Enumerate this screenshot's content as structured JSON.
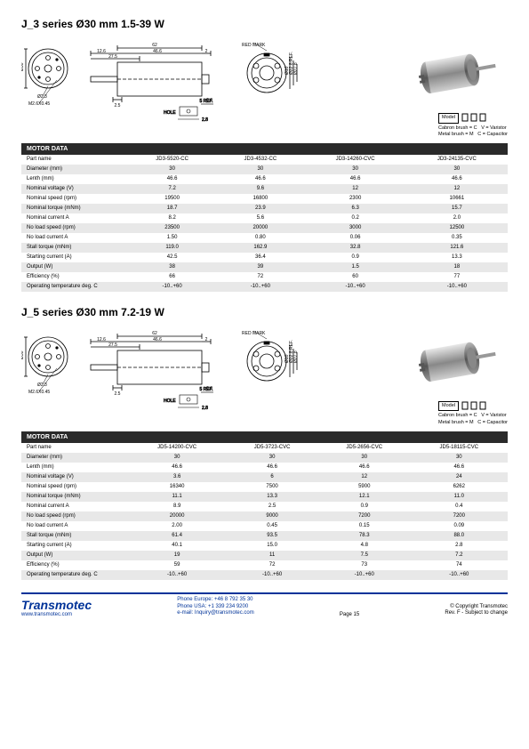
{
  "sections": [
    {
      "title": "J_3 series Ø30 mm 1.5-39 W",
      "diagram": {
        "overall_length": "62",
        "body_length": "46.6",
        "shaft_projection": "12.6",
        "shaft_flat": "27.5",
        "shaft_end_gap": "2",
        "shaft_step": "2.5",
        "diameter": "Ø30",
        "shaft_dia": "Ø2.3",
        "mount_thread": "M2.6X0.45",
        "red_mark": "RED MARK",
        "endcap_dia1": "Ø10",
        "endcap_dia2": "Ø22.8 REF.",
        "endcap_dia3": "Ø27.8",
        "term_ref": "5 REF.",
        "term_hole": "HOLE",
        "term_h": "2.8",
        "term_gap": "0.4"
      },
      "legend": {
        "model": "Model",
        "cb": "Cabron brush = C",
        "mb": "Metal brush = M",
        "v": "V = Varistor",
        "c": "C = Capacitor"
      },
      "table_header": "MOTOR DATA",
      "columns": [
        "JD3-5520-CC",
        "JD3-4532-CC",
        "JD3-14260-CVC",
        "JD3-24135-CVC"
      ],
      "rows": [
        {
          "label": "Part name",
          "v": [
            "JD3-5520-CC",
            "JD3-4532-CC",
            "JD3-14260-CVC",
            "JD3-24135-CVC"
          ]
        },
        {
          "label": "Diameter (mm)",
          "v": [
            "30",
            "30",
            "30",
            "30"
          ]
        },
        {
          "label": "Lenth (mm)",
          "v": [
            "46.6",
            "46.6",
            "46.6",
            "46.6"
          ]
        },
        {
          "label": "Nominal voltage (V)",
          "v": [
            "7.2",
            "9.6",
            "12",
            "12"
          ]
        },
        {
          "label": "Nominal speed (rpm)",
          "v": [
            "19500",
            "16800",
            "2300",
            "10661"
          ]
        },
        {
          "label": "Nominal torque (mNm)",
          "v": [
            "18.7",
            "23.9",
            "6.3",
            "15.7"
          ]
        },
        {
          "label": "Nominal current A",
          "v": [
            "8.2",
            "5.6",
            "0.2",
            "2.0"
          ]
        },
        {
          "label": "No load speed (rpm)",
          "v": [
            "23500",
            "20000",
            "3000",
            "12500"
          ]
        },
        {
          "label": "No load current A",
          "v": [
            "1.50",
            "0.80",
            "0.06",
            "0.35"
          ]
        },
        {
          "label": "Stall torque (mNm)",
          "v": [
            "119.0",
            "162.9",
            "32.8",
            "121.6"
          ]
        },
        {
          "label": "Starting current (A)",
          "v": [
            "42.5",
            "36.4",
            "0.9",
            "13.3"
          ]
        },
        {
          "label": "Output (W)",
          "v": [
            "38",
            "39",
            "1.5",
            "18"
          ]
        },
        {
          "label": "Efficiency (%)",
          "v": [
            "66",
            "72",
            "60",
            "77"
          ]
        },
        {
          "label": "Operating temperature deg. C",
          "v": [
            "-10..+60",
            "-10..+60",
            "-10..+60",
            "-10..+60"
          ]
        }
      ]
    },
    {
      "title": "J_5 series Ø30 mm 7.2-19 W",
      "diagram": {
        "overall_length": "62",
        "body_length": "46.6",
        "shaft_projection": "12.6",
        "shaft_flat": "27.5",
        "shaft_end_gap": "2",
        "shaft_step": "2.5",
        "diameter": "Ø30",
        "shaft_dia": "Ø2.3",
        "mount_thread": "M2.6X0.45",
        "red_mark": "RED MARK",
        "endcap_dia1": "Ø10",
        "endcap_dia2": "Ø22.8 REF.",
        "endcap_dia3": "Ø27.8",
        "term_ref": "5 REF.",
        "term_hole": "HOLE",
        "term_h": "2.8",
        "term_gap": "0.4"
      },
      "legend": {
        "model": "Model",
        "cb": "Cabron brush = C",
        "mb": "Metal brush = M",
        "v": "V = Varistor",
        "c": "C = Capacitor"
      },
      "table_header": "MOTOR DATA",
      "columns": [
        "JD5-14200-CVC",
        "JD5-3723-CVC",
        "JD5-2656-CVC",
        "JD5-18115-CVC"
      ],
      "rows": [
        {
          "label": "Part name",
          "v": [
            "JD5-14200-CVC",
            "JD5-3723-CVC",
            "JD5-2656-CVC",
            "JD5-18115-CVC"
          ]
        },
        {
          "label": "Diameter (mm)",
          "v": [
            "30",
            "30",
            "30",
            "30"
          ]
        },
        {
          "label": "Lenth (mm)",
          "v": [
            "46.6",
            "46.6",
            "46.6",
            "46.6"
          ]
        },
        {
          "label": "Nominal voltage (V)",
          "v": [
            "3.6",
            "6",
            "12",
            "24"
          ]
        },
        {
          "label": "Nominal speed (rpm)",
          "v": [
            "16340",
            "7500",
            "5900",
            "6262"
          ]
        },
        {
          "label": "Nominal torque (mNm)",
          "v": [
            "11.1",
            "13.3",
            "12.1",
            "11.0"
          ]
        },
        {
          "label": "Nominal current A",
          "v": [
            "8.9",
            "2.5",
            "0.9",
            "0.4"
          ]
        },
        {
          "label": "No load speed (rpm)",
          "v": [
            "20000",
            "9000",
            "7200",
            "7200"
          ]
        },
        {
          "label": "No load current A",
          "v": [
            "2.00",
            "0.45",
            "0.15",
            "0.09"
          ]
        },
        {
          "label": "Stall torque (mNm)",
          "v": [
            "61.4",
            "93.5",
            "78.3",
            "88.0"
          ]
        },
        {
          "label": "Starting current (A)",
          "v": [
            "40.1",
            "15.0",
            "4.8",
            "2.8"
          ]
        },
        {
          "label": "Output (W)",
          "v": [
            "19",
            "11",
            "7.5",
            "7.2"
          ]
        },
        {
          "label": "Efficiency (%)",
          "v": [
            "59",
            "72",
            "73",
            "74"
          ]
        },
        {
          "label": "Operating temperature deg. C",
          "v": [
            "-10..+60",
            "-10..+60",
            "-10..+60",
            "-10..+60"
          ]
        }
      ]
    }
  ],
  "footer": {
    "brand": "Transmotec",
    "www": "www.transmotec.com",
    "phone_eu": "Phone Europe: +46 8 792 35 30",
    "phone_us": "Phone USA:    +1 339 234 9200",
    "email": "e-mail: Inquiry@transmotec.com",
    "page": "Page 15",
    "copyright": "© Copyright Transmotec",
    "rev": "Rev. F - Subject to change"
  },
  "colors": {
    "table_header_bg": "#2a2a2a",
    "row_odd": "#e8e8e8",
    "row_even": "#ffffff",
    "brand_blue": "#003399"
  }
}
